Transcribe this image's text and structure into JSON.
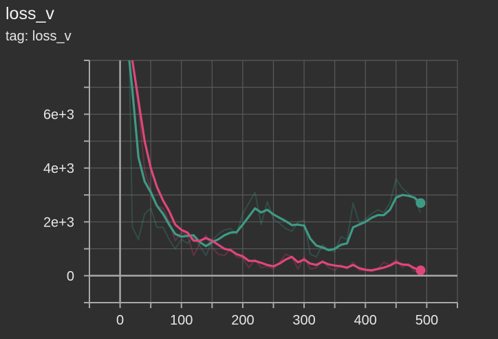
{
  "header": {
    "title": "loss_v",
    "subtitle": "tag: loss_v"
  },
  "colors": {
    "background": "#2f2f2f",
    "grid": "#5a5a5a",
    "axis": "#a8a8a8",
    "series_teal": "#3f9a85",
    "series_pink": "#e0467b"
  },
  "chart_data": {
    "type": "line",
    "title": "loss_v",
    "subtitle": "tag: loss_v",
    "xlabel": "",
    "ylabel": "",
    "xlim": [
      -50,
      550
    ],
    "ylim": [
      -1000,
      8000
    ],
    "x_ticks": [
      0,
      100,
      200,
      300,
      400,
      500
    ],
    "x_tick_labels": [
      "0",
      "100",
      "200",
      "300",
      "400",
      "500"
    ],
    "y_ticks": [
      0,
      2000,
      4000,
      6000
    ],
    "y_tick_labels": [
      "0",
      "2e+3",
      "4e+3",
      "6e+3"
    ],
    "grid": true,
    "legend": "none",
    "series": [
      {
        "color": "#3f9a85",
        "smoothed": {
          "x": [
            15,
            20,
            30,
            40,
            50,
            60,
            70,
            80,
            90,
            100,
            110,
            120,
            130,
            140,
            150,
            160,
            170,
            180,
            190,
            200,
            210,
            220,
            230,
            240,
            250,
            260,
            270,
            280,
            290,
            300,
            310,
            320,
            330,
            340,
            350,
            360,
            370,
            380,
            390,
            400,
            410,
            420,
            430,
            440,
            450,
            460,
            470,
            480,
            490
          ],
          "y": [
            8000,
            6900,
            4400,
            3500,
            3100,
            2600,
            2300,
            1900,
            1550,
            1450,
            1480,
            1500,
            1250,
            1100,
            1250,
            1350,
            1500,
            1600,
            1620,
            1900,
            2200,
            2500,
            2350,
            2450,
            2280,
            2150,
            2030,
            1880,
            1900,
            1860,
            1380,
            1120,
            1050,
            950,
            1000,
            1150,
            1200,
            1800,
            1900,
            2000,
            2150,
            2250,
            2250,
            2450,
            2900,
            3000,
            2970,
            2900,
            2700
          ]
        },
        "raw": {
          "x": [
            15,
            20,
            30,
            40,
            50,
            60,
            70,
            80,
            90,
            100,
            110,
            120,
            130,
            140,
            150,
            160,
            170,
            180,
            190,
            200,
            210,
            220,
            230,
            240,
            250,
            260,
            270,
            280,
            290,
            300,
            310,
            320,
            330,
            340,
            350,
            360,
            370,
            380,
            390,
            400,
            410,
            420,
            430,
            440,
            450,
            460,
            470,
            480,
            490
          ],
          "y": [
            8000,
            1800,
            1350,
            2300,
            2500,
            1800,
            1800,
            1350,
            1000,
            1350,
            1200,
            1450,
            1100,
            750,
            1300,
            1550,
            1700,
            1750,
            1550,
            2300,
            2700,
            3100,
            1900,
            2750,
            2100,
            1950,
            1750,
            1650,
            2000,
            2050,
            800,
            700,
            1150,
            950,
            900,
            1450,
            1350,
            2700,
            1950,
            2100,
            2300,
            2450,
            2350,
            2700,
            3600,
            3250,
            3050,
            2850,
            2350
          ]
        }
      },
      {
        "color": "#e0467b",
        "smoothed": {
          "x": [
            20,
            30,
            40,
            50,
            60,
            70,
            80,
            90,
            100,
            110,
            120,
            130,
            140,
            150,
            160,
            170,
            180,
            190,
            200,
            210,
            220,
            230,
            240,
            250,
            260,
            270,
            280,
            290,
            300,
            310,
            320,
            330,
            340,
            350,
            360,
            370,
            380,
            390,
            400,
            410,
            420,
            430,
            440,
            450,
            460,
            470,
            480,
            490
          ],
          "y": [
            8000,
            6500,
            5000,
            4000,
            3300,
            2800,
            2400,
            1900,
            1700,
            1600,
            1300,
            1300,
            1400,
            1300,
            1150,
            1000,
            950,
            800,
            720,
            550,
            550,
            480,
            400,
            350,
            450,
            600,
            700,
            500,
            600,
            450,
            400,
            520,
            420,
            380,
            350,
            300,
            400,
            280,
            220,
            200,
            250,
            300,
            380,
            500,
            420,
            400,
            280,
            200
          ]
        },
        "raw": {
          "x": [
            20,
            30,
            40,
            50,
            60,
            70,
            80,
            90,
            100,
            110,
            120,
            130,
            140,
            150,
            160,
            170,
            180,
            190,
            200,
            210,
            220,
            230,
            240,
            250,
            260,
            270,
            280,
            290,
            300,
            310,
            320,
            330,
            340,
            350,
            360,
            370,
            380,
            390,
            400,
            410,
            420,
            430,
            440,
            450,
            460,
            470,
            480,
            490
          ],
          "y": [
            8000,
            6300,
            3900,
            3200,
            2600,
            2500,
            2000,
            1300,
            1600,
            1500,
            750,
            1200,
            1500,
            1050,
            800,
            750,
            1000,
            700,
            650,
            300,
            600,
            300,
            350,
            250,
            500,
            800,
            700,
            250,
            700,
            250,
            300,
            550,
            300,
            200,
            400,
            250,
            500,
            200,
            200,
            150,
            250,
            500,
            400,
            600,
            300,
            450,
            150,
            200
          ]
        }
      }
    ]
  }
}
